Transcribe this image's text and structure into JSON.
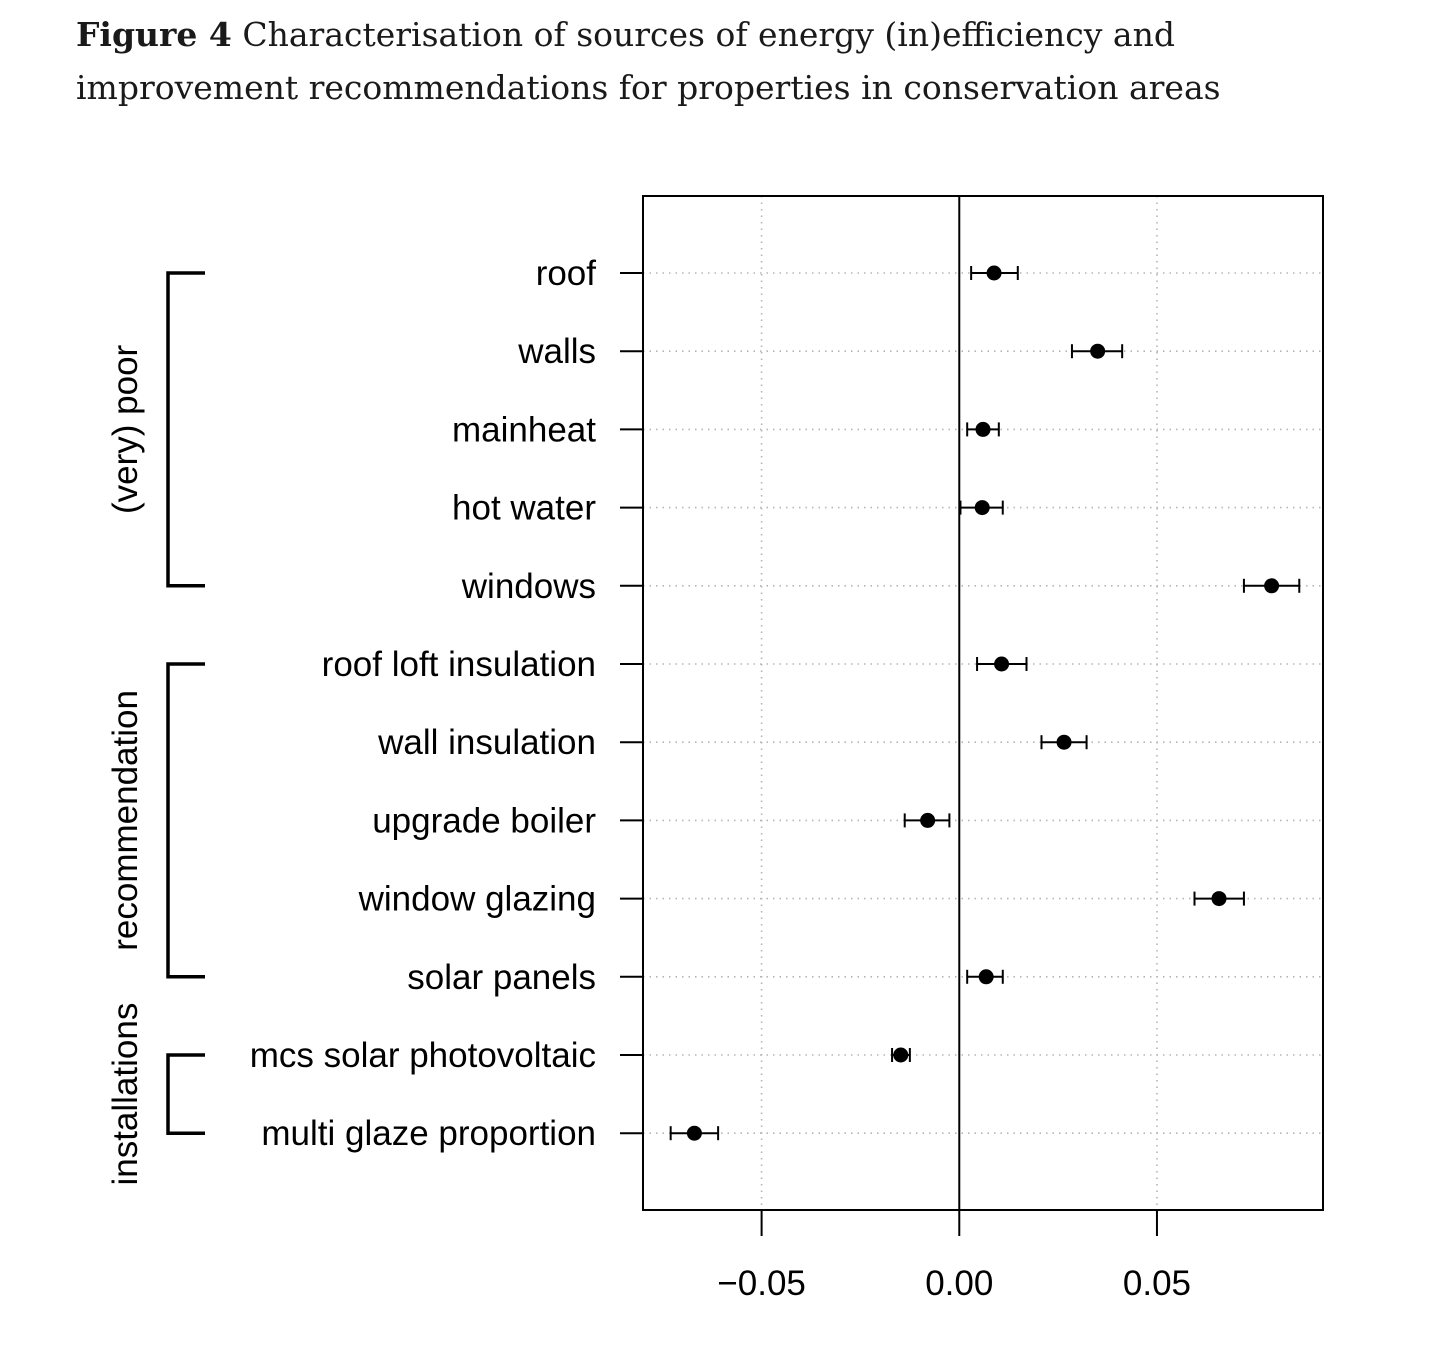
{
  "caption": {
    "label": "Figure 4",
    "text": "Characterisation of sources of energy (in)efficiency and improvement recommendations for properties in conservation areas"
  },
  "chart_data": {
    "type": "scatter",
    "subtype": "dot-and-whisker (coefficient plot)",
    "title": "",
    "xlabel": "",
    "ylabel": "",
    "xlim": [
      -0.08,
      0.092
    ],
    "xticks": [
      -0.05,
      0.0,
      0.05
    ],
    "xtick_labels": [
      "−0.05",
      "0.00",
      "0.05"
    ],
    "reference_line": 0,
    "grid": "dotted",
    "groups": [
      {
        "label": "(very) poor",
        "first": 0,
        "last": 4
      },
      {
        "label": "recommendation",
        "first": 5,
        "last": 9
      },
      {
        "label": "installations",
        "first": 10,
        "last": 11
      }
    ],
    "points": [
      {
        "label": "roof",
        "estimate": 0.0088,
        "lower": 0.003,
        "upper": 0.0148
      },
      {
        "label": "walls",
        "estimate": 0.035,
        "lower": 0.0285,
        "upper": 0.0412
      },
      {
        "label": "mainheat",
        "estimate": 0.006,
        "lower": 0.002,
        "upper": 0.01
      },
      {
        "label": "hot water",
        "estimate": 0.0058,
        "lower": 0.0003,
        "upper": 0.011
      },
      {
        "label": "windows",
        "estimate": 0.079,
        "lower": 0.072,
        "upper": 0.086
      },
      {
        "label": "roof loft insulation",
        "estimate": 0.0107,
        "lower": 0.0045,
        "upper": 0.017
      },
      {
        "label": "wall insulation",
        "estimate": 0.0265,
        "lower": 0.0208,
        "upper": 0.0322
      },
      {
        "label": "upgrade boiler",
        "estimate": -0.008,
        "lower": -0.0138,
        "upper": -0.0025
      },
      {
        "label": "window glazing",
        "estimate": 0.0657,
        "lower": 0.0595,
        "upper": 0.072
      },
      {
        "label": "solar panels",
        "estimate": 0.0068,
        "lower": 0.002,
        "upper": 0.011
      },
      {
        "label": "mcs solar photovoltaic",
        "estimate": -0.0148,
        "lower": -0.017,
        "upper": -0.0125
      },
      {
        "label": "multi glaze proportion",
        "estimate": -0.067,
        "lower": -0.073,
        "upper": -0.061
      }
    ]
  }
}
